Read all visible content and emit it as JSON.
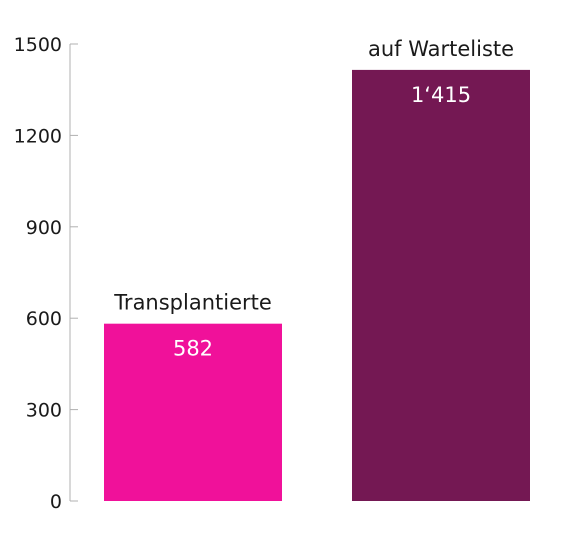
{
  "chart_data": {
    "type": "bar",
    "categories": [
      "Transplantierte",
      "auf Warteliste"
    ],
    "values": [
      582,
      1415
    ],
    "value_labels": [
      "582",
      "1‘415"
    ],
    "colors": [
      "#f0119a",
      "#741853"
    ],
    "yticks": [
      0,
      300,
      600,
      900,
      1200,
      1500
    ],
    "ylim": [
      0,
      1500
    ],
    "grid": false,
    "legend": "none"
  }
}
